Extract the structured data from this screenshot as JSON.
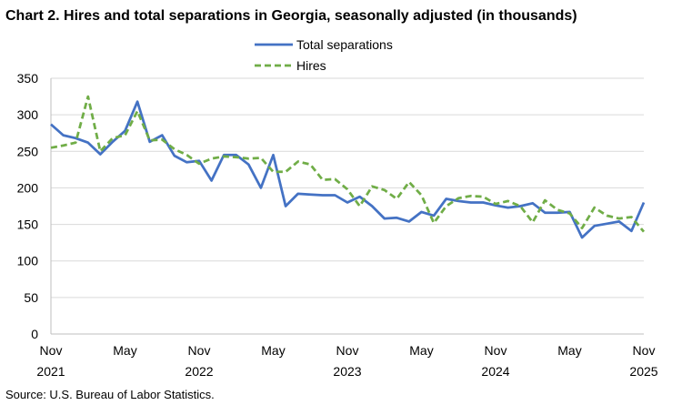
{
  "chart_data": {
    "type": "line",
    "title": "Chart 2. Hires and total separations in Georgia, seasonally adjusted (in thousands)",
    "source": "Source: U.S. Bureau of Labor Statistics.",
    "categories": [
      "Nov 2021",
      null,
      null,
      null,
      null,
      null,
      "May",
      null,
      null,
      null,
      null,
      null,
      "Nov 2022",
      null,
      null,
      null,
      null,
      null,
      "May",
      null,
      null,
      null,
      null,
      null,
      "Nov 2023",
      null,
      null,
      null,
      null,
      null,
      "May",
      null,
      null,
      null,
      null,
      null,
      "Nov 2024",
      null,
      null,
      null,
      null,
      null,
      "May",
      null,
      null,
      null,
      null,
      null,
      "Nov 2025"
    ],
    "series": [
      {
        "name": "Total separations",
        "color": "#4472c4",
        "dash": false,
        "values": [
          287,
          272,
          268,
          262,
          246,
          263,
          278,
          318,
          263,
          272,
          244,
          235,
          237,
          210,
          245,
          245,
          232,
          200,
          245,
          175,
          192,
          191,
          190,
          190,
          180,
          188,
          175,
          158,
          159,
          154,
          167,
          162,
          185,
          182,
          180,
          180,
          176,
          173,
          175,
          179,
          166,
          166,
          167,
          132,
          148,
          151,
          154,
          141,
          180
        ]
      },
      {
        "name": "Hires",
        "color": "#70ad47",
        "dash": true,
        "values": [
          255,
          258,
          262,
          325,
          250,
          268,
          272,
          305,
          265,
          266,
          253,
          245,
          233,
          240,
          243,
          242,
          240,
          241,
          222,
          222,
          236,
          232,
          211,
          212,
          198,
          175,
          202,
          197,
          185,
          208,
          190,
          152,
          175,
          186,
          189,
          188,
          178,
          182,
          175,
          153,
          183,
          170,
          165,
          145,
          173,
          162,
          158,
          160,
          140
        ]
      }
    ],
    "ylim": [
      0,
      350
    ],
    "yticks": [
      0,
      50,
      100,
      150,
      200,
      250,
      300,
      350
    ],
    "grid": true
  }
}
